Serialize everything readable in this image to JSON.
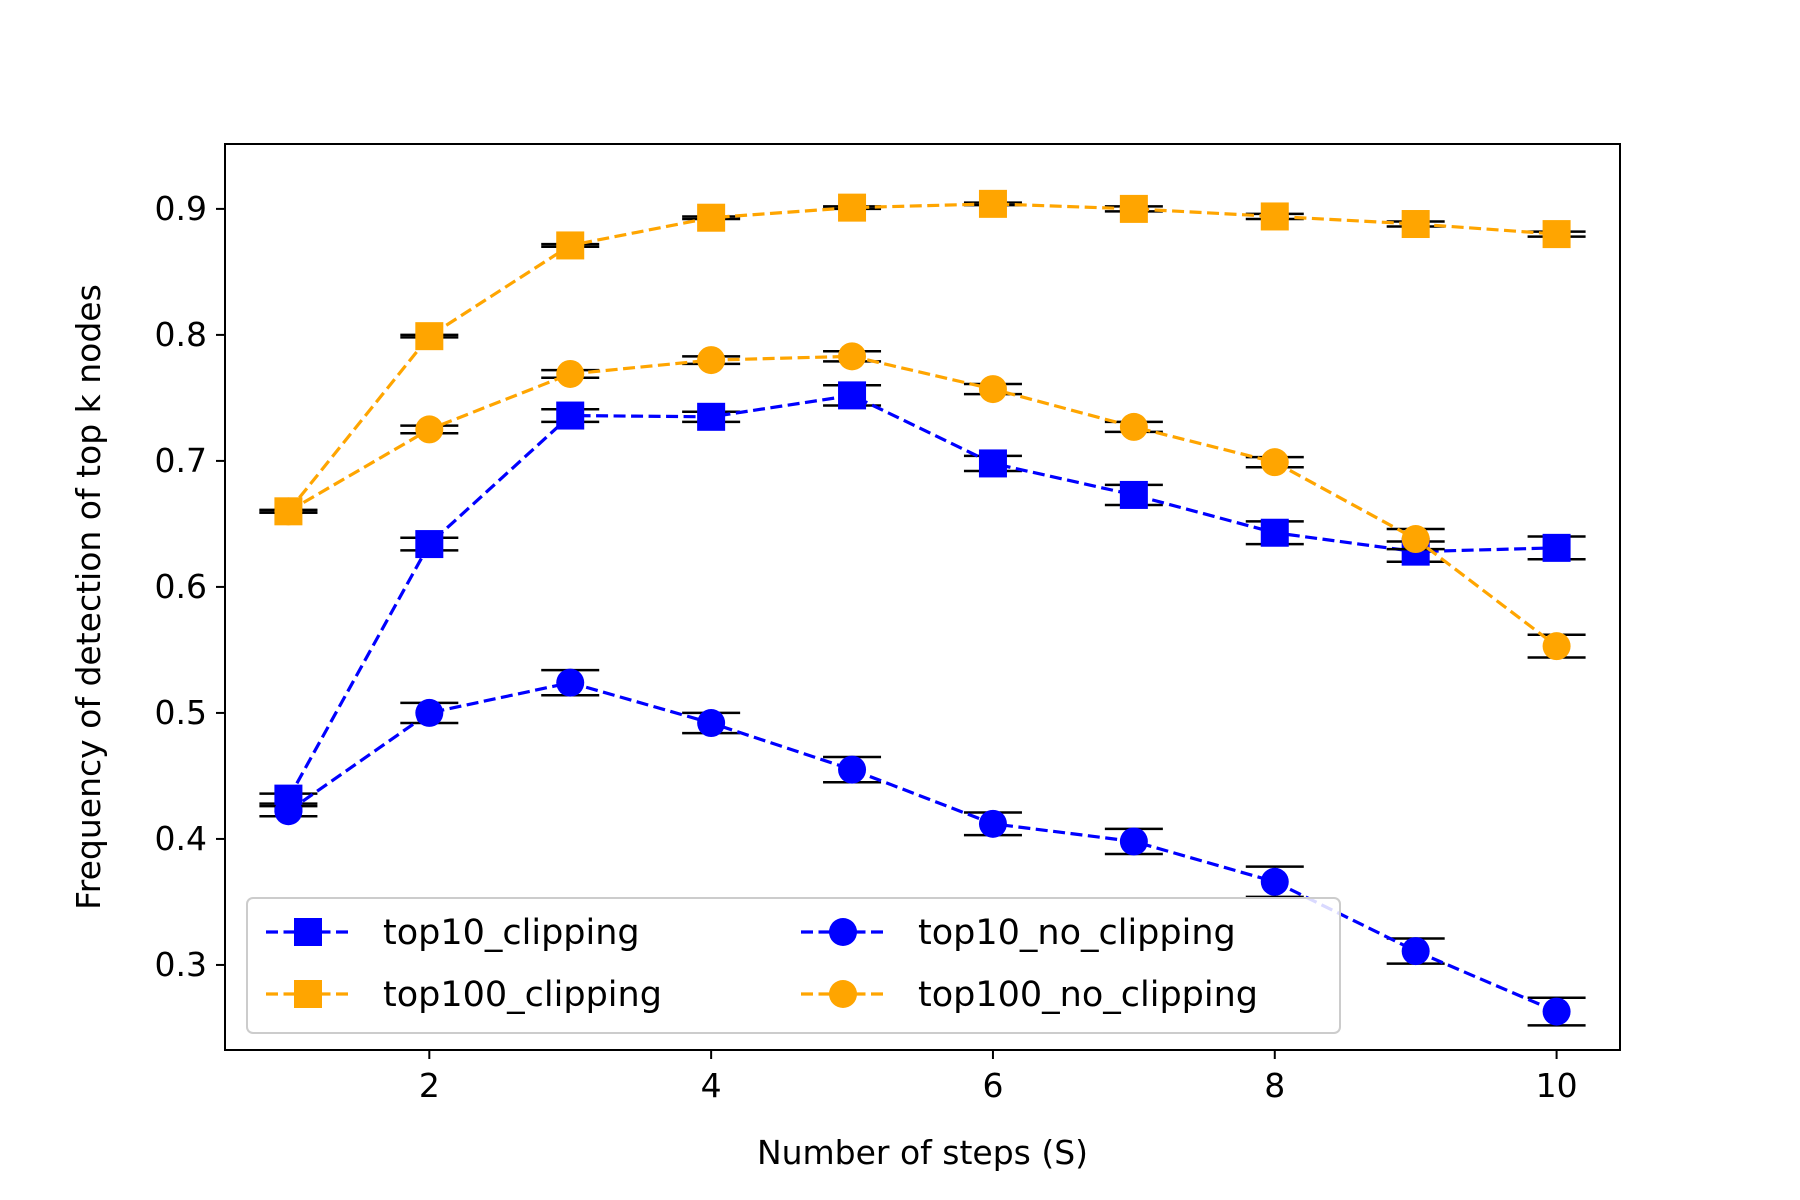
{
  "chart_data": {
    "type": "line",
    "title": "",
    "xlabel": "Number of steps (S)",
    "ylabel": "Frequency of detection of top k nodes",
    "xlim": [
      0.55,
      10.45
    ],
    "ylim": [
      0.2325,
      0.9515
    ],
    "xticks": [
      2,
      4,
      6,
      8,
      10
    ],
    "yticks": [
      0.3,
      0.4,
      0.5,
      0.6,
      0.7,
      0.8,
      0.9
    ],
    "grid": false,
    "legend_position": "lower-left",
    "legend_columns": 2,
    "x": [
      1,
      2,
      3,
      4,
      5,
      6,
      7,
      8,
      9,
      10
    ],
    "series": [
      {
        "name": "top10_clipping",
        "color": "#0000ff",
        "marker": "square",
        "line_style": "dashed",
        "values": [
          0.432,
          0.634,
          0.736,
          0.735,
          0.752,
          0.698,
          0.673,
          0.643,
          0.628,
          0.631
        ],
        "errors": [
          0.004,
          0.005,
          0.005,
          0.004,
          0.008,
          0.006,
          0.008,
          0.009,
          0.008,
          0.009
        ]
      },
      {
        "name": "top100_clipping",
        "color": "#ffa500",
        "marker": "square",
        "line_style": "dashed",
        "values": [
          0.66,
          0.799,
          0.871,
          0.893,
          0.901,
          0.904,
          0.9,
          0.894,
          0.888,
          0.88
        ],
        "errors": [
          0.001,
          0.001,
          0.001,
          0.001,
          0.001,
          0.001,
          0.002,
          0.002,
          0.002,
          0.002
        ]
      },
      {
        "name": "top10_no_clipping",
        "color": "#0000ff",
        "marker": "circle",
        "line_style": "dashed",
        "values": [
          0.422,
          0.5,
          0.524,
          0.492,
          0.455,
          0.412,
          0.398,
          0.366,
          0.311,
          0.263
        ],
        "errors": [
          0.004,
          0.008,
          0.01,
          0.008,
          0.01,
          0.009,
          0.01,
          0.012,
          0.01,
          0.011
        ]
      },
      {
        "name": "top100_no_clipping",
        "color": "#ffa500",
        "marker": "circle",
        "line_style": "dashed",
        "values": [
          0.66,
          0.725,
          0.769,
          0.78,
          0.783,
          0.757,
          0.727,
          0.699,
          0.638,
          0.553
        ],
        "errors": [
          0.001,
          0.003,
          0.003,
          0.003,
          0.004,
          0.004,
          0.004,
          0.004,
          0.008,
          0.009
        ]
      }
    ]
  }
}
